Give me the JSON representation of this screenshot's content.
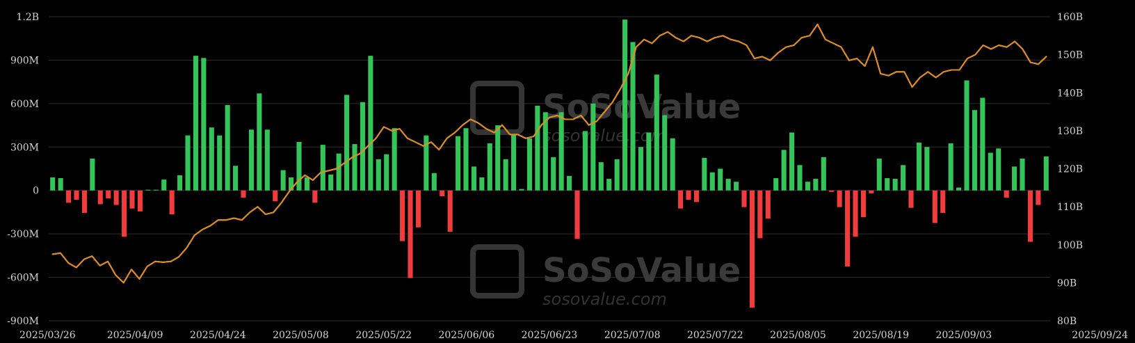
{
  "chart_data": {
    "type": "bar",
    "title": "",
    "legend": "none",
    "grid": true,
    "x_ticks": [
      "2025/03/26",
      "2025/04/09",
      "2025/04/24",
      "2025/05/08",
      "2025/05/22",
      "2025/06/06",
      "2025/06/23",
      "2025/07/08",
      "2025/07/22",
      "2025/08/05",
      "2025/08/19",
      "2025/09/03",
      "2025/09/24"
    ],
    "y_left": {
      "ticks": [
        "1.2B",
        "900M",
        "600M",
        "300M",
        "0",
        "-300M",
        "-600M",
        "-900M"
      ],
      "range": [
        -900,
        1200
      ],
      "unit": "M"
    },
    "y_right": {
      "ticks": [
        "160B",
        "150B",
        "140B",
        "130B",
        "120B",
        "110B",
        "100B",
        "90B",
        "80B"
      ],
      "range": [
        80,
        160
      ],
      "unit": "B"
    },
    "bar_values": [
      90,
      85,
      -85,
      -65,
      -155,
      220,
      -95,
      -55,
      -100,
      -320,
      -125,
      -145,
      5,
      5,
      75,
      -165,
      105,
      380,
      930,
      915,
      435,
      380,
      590,
      170,
      -50,
      420,
      670,
      420,
      -75,
      140,
      90,
      335,
      90,
      -85,
      315,
      110,
      255,
      660,
      320,
      610,
      930,
      215,
      250,
      430,
      -350,
      -605,
      -255,
      380,
      120,
      -40,
      -285,
      375,
      430,
      165,
      90,
      325,
      450,
      215,
      390,
      10,
      360,
      585,
      540,
      230,
      540,
      100,
      -335,
      410,
      600,
      195,
      80,
      215,
      1180,
      1025,
      300,
      400,
      800,
      520,
      360,
      -125,
      -65,
      -80,
      225,
      125,
      150,
      80,
      60,
      -115,
      -810,
      -330,
      -195,
      85,
      280,
      400,
      175,
      60,
      80,
      230,
      -10,
      -115,
      -525,
      -320,
      -185,
      -20,
      220,
      85,
      80,
      175,
      -120,
      330,
      300,
      -225,
      -155,
      325,
      20,
      760,
      555,
      640,
      260,
      290,
      -50,
      165,
      220,
      -355,
      -100,
      235
    ],
    "series": [
      {
        "color": "#e6e6e6",
        "axis": "right",
        "values": [
          97.5,
          97.8,
          95.2,
          94.0,
          96.2,
          97.0,
          94.5,
          95.6,
          92.0,
          90.0,
          93.5,
          91.0,
          94.3,
          95.6,
          95.4,
          95.6,
          96.8,
          99.2,
          102.5,
          104.0,
          105.0,
          106.5,
          106.5,
          107.0,
          106.5,
          108.5,
          110.0,
          108.0,
          108.5,
          111.0,
          114.0,
          116.5,
          118.3,
          117.0,
          119.0,
          119.5,
          120.0,
          121.5,
          123.0,
          124.0,
          126.0,
          128.0,
          131.0,
          130.0,
          130.5,
          128.0,
          127.0,
          126.0,
          127.0,
          125.0,
          128.0,
          129.5,
          131.5,
          133.0,
          132.0,
          130.5,
          129.5,
          131.5,
          129.0,
          129.0,
          128.0,
          128.5,
          131.5,
          133.5,
          134.0,
          133.0,
          133.0,
          134.0,
          131.5,
          132.5,
          135.0,
          137.5,
          141.0,
          145.0,
          152.0,
          154.0,
          153.0,
          155.0,
          156.0,
          154.5,
          153.5,
          155.0,
          154.5,
          153.5,
          154.5,
          155.0,
          154.0,
          153.5,
          152.5,
          149.0,
          149.5,
          148.5,
          150.5,
          152.0,
          152.5,
          154.5,
          155.0,
          158.0,
          154.0,
          153.0,
          152.0,
          148.5,
          149.0,
          147.0,
          152.0,
          145.0,
          144.5,
          145.5,
          145.5,
          141.5,
          144.0,
          145.5,
          144.0,
          145.5,
          146.0,
          146.0,
          149.0,
          150.0,
          152.5,
          151.5,
          152.5,
          152.0,
          153.5,
          151.5,
          148.0,
          147.5,
          149.5
        ]
      },
      {
        "color": "#e08a1e",
        "axis": "right",
        "values": [
          97.5,
          97.8,
          95.2,
          94.0,
          96.2,
          97.0,
          94.5,
          95.6,
          92.0,
          90.0,
          93.5,
          91.0,
          94.3,
          95.6,
          95.4,
          95.6,
          96.8,
          99.2,
          102.5,
          104.0,
          105.0,
          106.5,
          106.5,
          107.0,
          106.5,
          108.5,
          110.0,
          108.0,
          108.5,
          111.0,
          114.0,
          116.5,
          118.3,
          117.0,
          119.0,
          119.5,
          120.0,
          121.5,
          123.0,
          124.0,
          126.0,
          128.0,
          131.0,
          130.0,
          130.5,
          128.0,
          127.0,
          126.0,
          127.0,
          125.0,
          128.0,
          129.5,
          131.5,
          133.0,
          132.0,
          130.5,
          129.5,
          131.5,
          129.0,
          129.0,
          128.0,
          128.5,
          131.5,
          133.5,
          134.0,
          133.0,
          133.0,
          134.0,
          131.5,
          132.5,
          135.0,
          137.5,
          141.0,
          145.0,
          152.0,
          154.0,
          153.0,
          155.0,
          156.0,
          154.5,
          153.5,
          155.0,
          154.5,
          153.5,
          154.5,
          155.0,
          154.0,
          153.5,
          152.5,
          149.0,
          149.5,
          148.5,
          150.5,
          152.0,
          152.5,
          154.5,
          155.0,
          158.0,
          154.0,
          153.0,
          152.0,
          148.5,
          149.0,
          147.0,
          152.0,
          145.0,
          144.5,
          145.5,
          145.5,
          141.5,
          144.0,
          145.5,
          144.0,
          145.5,
          146.0,
          146.0,
          149.0,
          150.0,
          152.5,
          151.5,
          152.5,
          152.0,
          153.5,
          151.5,
          148.0,
          147.5,
          149.5
        ]
      }
    ]
  },
  "watermark": {
    "brand": "SoSoValue",
    "site": "sosovalue.com"
  }
}
